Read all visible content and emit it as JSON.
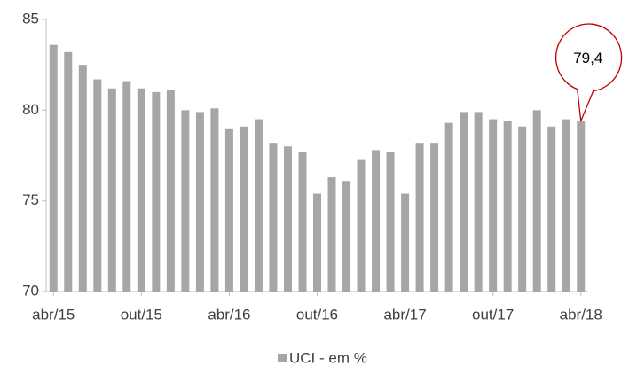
{
  "chart_data": {
    "type": "bar",
    "categories": [
      "abr/15",
      null,
      null,
      null,
      null,
      null,
      "out/15",
      null,
      null,
      null,
      null,
      null,
      "abr/16",
      null,
      null,
      null,
      null,
      null,
      "out/16",
      null,
      null,
      null,
      null,
      null,
      "abr/17",
      null,
      null,
      null,
      null,
      null,
      "out/17",
      null,
      null,
      null,
      null,
      null,
      "abr/18"
    ],
    "series": [
      {
        "name": "UCI - em %",
        "color": "#a6a6a6",
        "values": [
          83.6,
          83.2,
          82.5,
          81.7,
          81.2,
          81.6,
          81.2,
          81.0,
          81.1,
          80.0,
          79.9,
          80.1,
          79.0,
          79.1,
          79.5,
          78.2,
          78.0,
          77.7,
          75.4,
          76.3,
          76.1,
          77.3,
          77.8,
          77.7,
          75.4,
          78.2,
          78.2,
          79.3,
          79.9,
          79.9,
          79.5,
          79.4,
          79.1,
          80.0,
          79.1,
          79.5,
          79.4
        ],
        "value_labels": [
          null,
          null,
          null,
          null,
          null,
          null,
          null,
          null,
          null,
          null,
          null,
          null,
          null,
          null,
          null,
          null,
          null,
          null,
          null,
          null,
          null,
          null,
          null,
          null,
          null,
          null,
          null,
          null,
          null,
          null,
          null,
          null,
          null,
          null,
          null,
          null,
          "79,4"
        ]
      }
    ],
    "ylim": [
      70,
      85
    ],
    "yticks": [
      70,
      75,
      80,
      85
    ],
    "legend": "bottom"
  }
}
